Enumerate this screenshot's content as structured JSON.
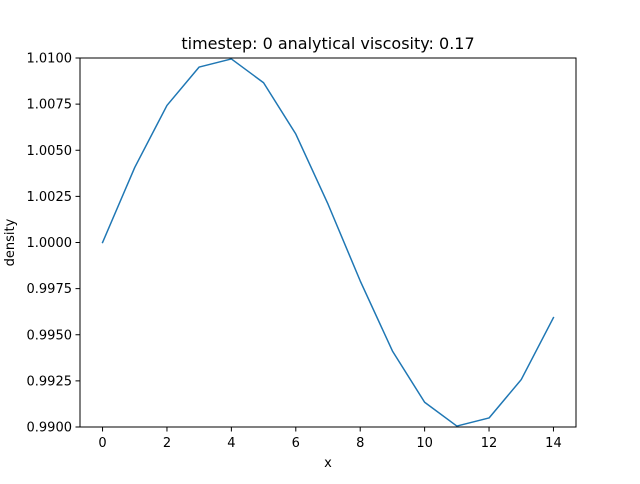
{
  "chart_data": {
    "type": "line",
    "title": "timestep: 0 analytical viscosity: 0.17",
    "xlabel": "x",
    "ylabel": "density",
    "xlim": [
      -0.7,
      14.7
    ],
    "ylim": [
      0.99,
      1.01
    ],
    "xticks": [
      0,
      2,
      4,
      6,
      8,
      10,
      12,
      14
    ],
    "xtick_labels": [
      "0",
      "2",
      "4",
      "6",
      "8",
      "10",
      "12",
      "14"
    ],
    "yticks": [
      0.99,
      0.9925,
      0.995,
      0.9975,
      1.0,
      1.0025,
      1.005,
      1.0075,
      1.01
    ],
    "ytick_labels": [
      "0.9900",
      "0.9925",
      "0.9950",
      "0.9975",
      "1.0000",
      "1.0025",
      "1.0050",
      "1.0075",
      "1.0100"
    ],
    "grid": false,
    "series": [
      {
        "color": "#1f77b4",
        "x": [
          0,
          1,
          2,
          3,
          4,
          5,
          6,
          7,
          8,
          9,
          10,
          11,
          12,
          13,
          14
        ],
        "y": [
          1.0,
          1.00407,
          1.00743,
          1.00951,
          1.00995,
          1.00866,
          1.00588,
          1.00208,
          0.99792,
          0.99412,
          0.99134,
          0.99005,
          0.99049,
          0.99257,
          0.99593
        ]
      }
    ]
  }
}
